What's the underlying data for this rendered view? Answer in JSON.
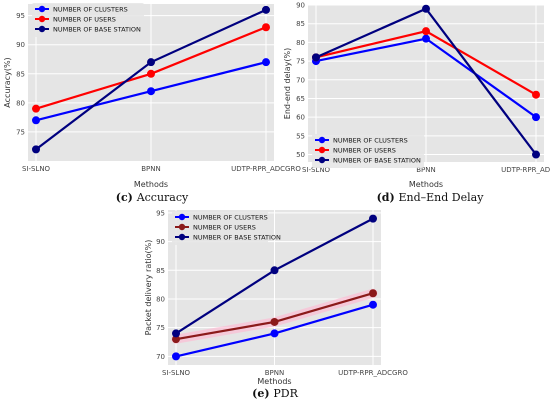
{
  "chart_data": [
    {
      "type": "line",
      "id": "accuracy",
      "caption_letter": "(c)",
      "caption_text": "Accuracy",
      "xlabel": "Methods",
      "ylabel": "Accuracy(%)",
      "categories": [
        "SI-SLNO",
        "BPNN",
        "UDTP-RPR_ADCGRO"
      ],
      "ylim": [
        70,
        97
      ],
      "yticks": [
        75,
        80,
        85,
        90,
        95
      ],
      "grid": true,
      "legend_position": "top-left",
      "series": [
        {
          "name": "NUMBER OF CLUSTERS",
          "color": "#0000ff",
          "values": [
            77,
            82,
            87
          ]
        },
        {
          "name": "NUMBER OF USERS",
          "color": "#ff0000",
          "values": [
            79,
            85,
            93
          ]
        },
        {
          "name": "NUMBER OF BASE STATION",
          "color": "#00007f",
          "values": [
            72,
            87,
            96
          ]
        }
      ]
    },
    {
      "type": "line",
      "id": "delay",
      "caption_letter": "(d)",
      "caption_text": "End–End Delay",
      "xlabel": "Methods",
      "ylabel": "End-end delay(%)",
      "categories": [
        "SI-SLNO",
        "BPNN",
        "UDTP-RPR_ADCGRO"
      ],
      "ylim": [
        48,
        90
      ],
      "yticks": [
        50,
        55,
        60,
        65,
        70,
        75,
        80,
        85,
        90
      ],
      "grid": true,
      "legend_position": "bottom-left",
      "series": [
        {
          "name": "NUMBER OF CLUSTERS",
          "color": "#0000ff",
          "values": [
            75,
            81,
            60
          ]
        },
        {
          "name": "NUMBER OF USERS",
          "color": "#ff0000",
          "values": [
            76,
            83,
            66
          ]
        },
        {
          "name": "NUMBER OF BASE STATION",
          "color": "#00007f",
          "values": [
            76,
            89,
            50
          ]
        }
      ]
    },
    {
      "type": "line",
      "id": "pdr",
      "caption_letter": "(e)",
      "caption_text": "PDR",
      "xlabel": "Methods",
      "ylabel": "Packet delivery ratio(%)",
      "categories": [
        "SI-SLNO",
        "BPNN",
        "UDTP-RPR_ADCGRO"
      ],
      "ylim": [
        68.5,
        95.5
      ],
      "yticks": [
        70,
        75,
        80,
        85,
        90,
        95
      ],
      "grid": true,
      "legend_position": "top-left",
      "series": [
        {
          "name": "NUMBER OF CLUSTERS",
          "color": "#0000ff",
          "values": [
            70,
            74,
            79
          ]
        },
        {
          "name": "NUMBER OF USERS",
          "color": "#8b1a1a",
          "values": [
            73,
            76,
            81
          ]
        },
        {
          "name": "NUMBER OF BASE STATION",
          "color": "#00007f",
          "values": [
            74,
            85,
            94
          ]
        }
      ]
    }
  ]
}
